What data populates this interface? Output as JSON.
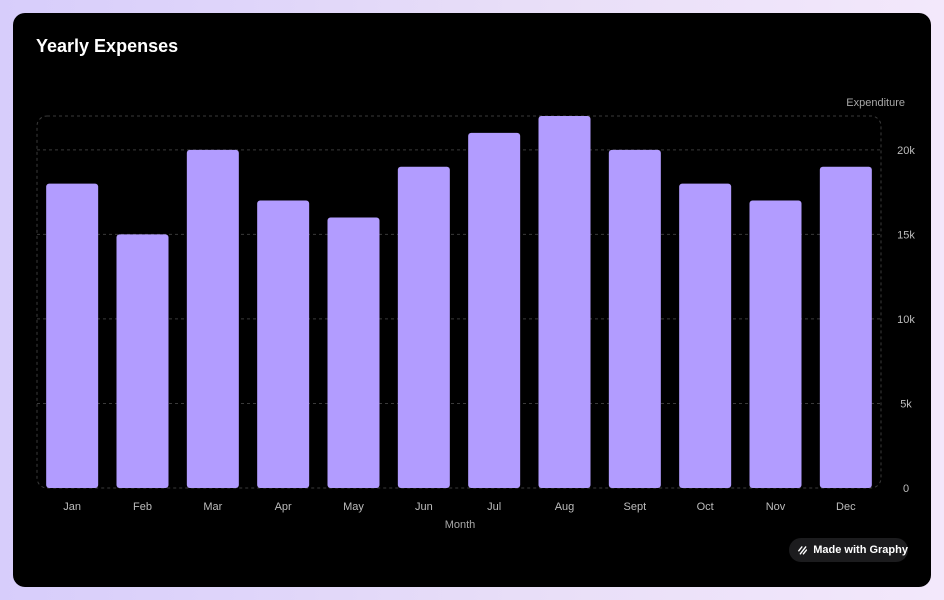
{
  "colors": {
    "bar": "#b29cff",
    "grid": "#3a3a3a",
    "tick_text": "#bdbdbd",
    "label_text": "#a8a8a8"
  },
  "badge": {
    "label": "Made with Graphy",
    "icon": "graphy-logo-icon"
  },
  "chart_data": {
    "type": "bar",
    "title": "Yearly Expenses",
    "xlabel": "Month",
    "ylabel": "Expenditure",
    "categories": [
      "Jan",
      "Feb",
      "Mar",
      "Apr",
      "May",
      "Jun",
      "Jul",
      "Aug",
      "Sept",
      "Oct",
      "Nov",
      "Dec"
    ],
    "values": [
      18000,
      15000,
      20000,
      17000,
      16000,
      19000,
      21000,
      22000,
      20000,
      18000,
      17000,
      19000
    ],
    "ylim": [
      0,
      22000
    ],
    "yticks": [
      0,
      5000,
      10000,
      15000,
      20000
    ],
    "ytick_labels": [
      "0",
      "5k",
      "10k",
      "15k",
      "20k"
    ],
    "grid": true,
    "legend": "none",
    "y_axis_side": "right"
  }
}
